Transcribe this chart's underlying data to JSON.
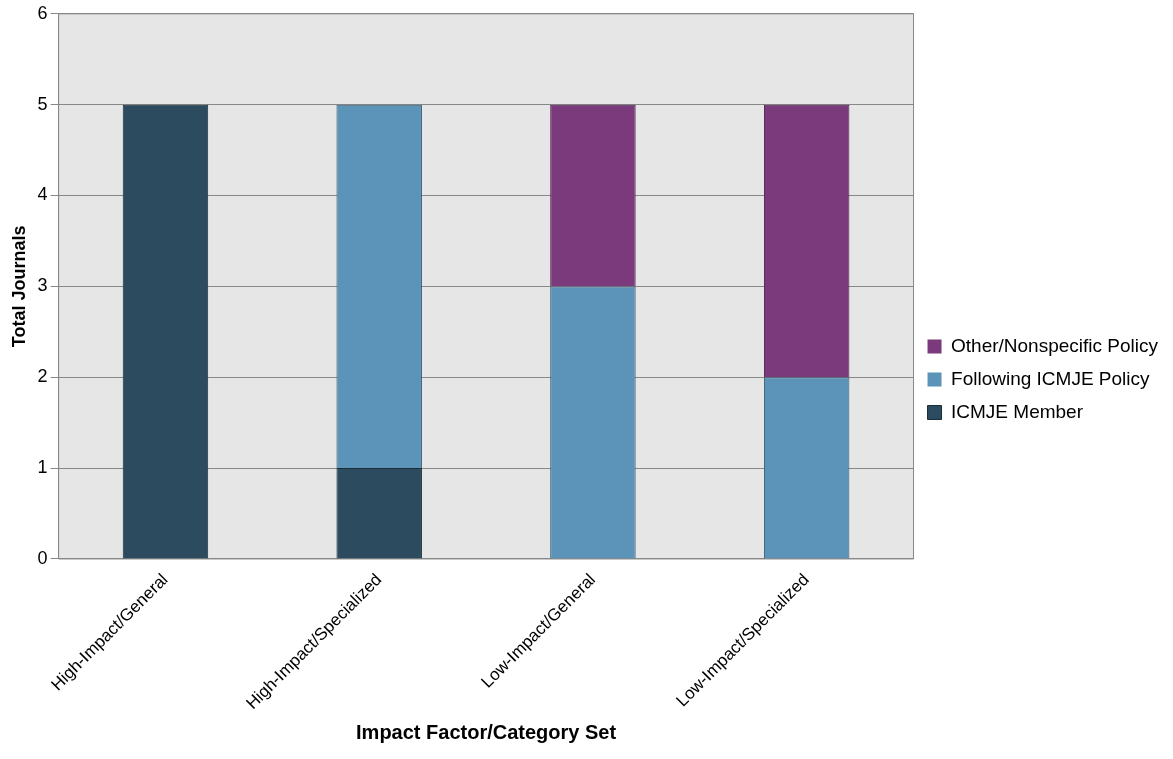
{
  "chart_data": {
    "type": "bar",
    "stacked": true,
    "xlabel": "Impact Factor/Category Set",
    "ylabel": "Total Journals",
    "categories": [
      "High-Impact/General",
      "High-Impact/Specialized",
      "Low-Impact/General",
      "Low-Impact/Specialized"
    ],
    "series": [
      {
        "name": "ICMJE Member",
        "color": "#2c4b5f",
        "values": [
          5,
          1,
          0,
          0
        ]
      },
      {
        "name": "Following ICMJE Policy",
        "color": "#5b94b8",
        "values": [
          0,
          4,
          3,
          2
        ]
      },
      {
        "name": "Other/Nonspecific Policy",
        "color": "#7a3a7c",
        "values": [
          0,
          0,
          2,
          3
        ]
      }
    ],
    "ylim": [
      0,
      6
    ],
    "yticks": [
      0,
      1,
      2,
      3,
      4,
      5,
      6
    ],
    "grid": "y",
    "legend": "right"
  }
}
